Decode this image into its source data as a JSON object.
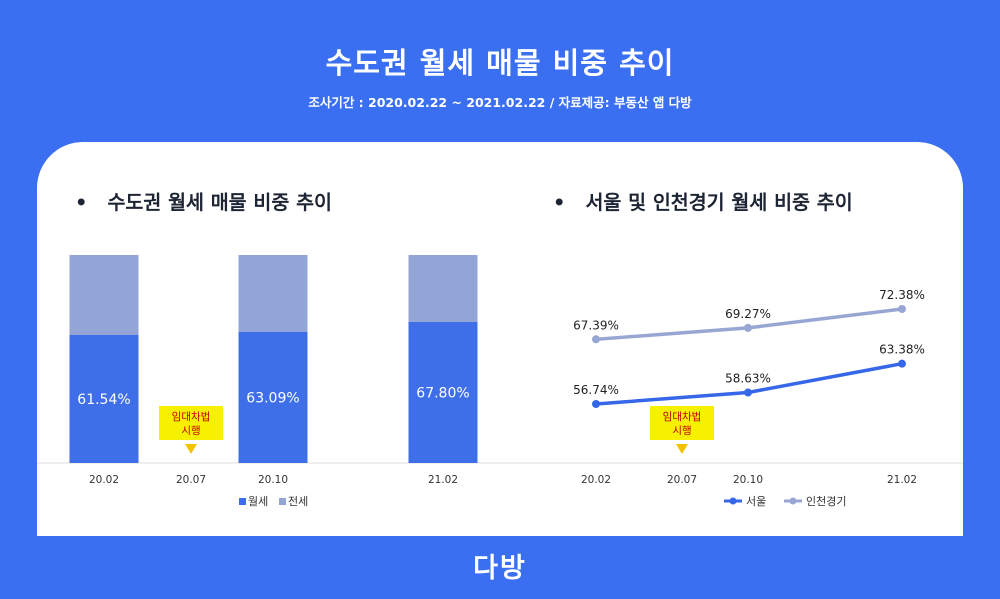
{
  "header": {
    "title": "수도권 월세 매물 비중 추이",
    "subtitle": "조사기간 : 2020.02.22 ~ 2021.02.22 / 자료제공: 부동산 앱 다방"
  },
  "logo_text": "다방",
  "colors": {
    "background": "#3a6ff2",
    "monthly": "#3f6fe8",
    "jeonse": "#93a5d6",
    "seoul": "#3567e8",
    "incheon_gyeonggi": "#98a6d3",
    "note_bg": "#f6f100",
    "note_text": "#c00000"
  },
  "chart_data": [
    {
      "type": "bar",
      "title": "수도권 월세 매물 비중 추이",
      "bullet": "•",
      "categories": [
        "20.02",
        "20.07",
        "20.10",
        "21.02"
      ],
      "stacked": true,
      "ylim": [
        0,
        100
      ],
      "series": [
        {
          "name": "월세",
          "values": [
            61.54,
            null,
            63.09,
            67.8
          ],
          "labels": [
            "61.54%",
            "",
            "63.09%",
            "67.80%"
          ]
        },
        {
          "name": "전세",
          "values": [
            38.46,
            null,
            36.91,
            32.2
          ]
        }
      ],
      "legend_position": "bottom",
      "annotation": {
        "category": "20.07",
        "text_lines": [
          "임대차법",
          "시행"
        ]
      }
    },
    {
      "type": "line",
      "title": "서울 및 인천경기 월세 비중 추이",
      "bullet": "•",
      "x": [
        "20.02",
        "20.07",
        "20.10",
        "21.02"
      ],
      "series": [
        {
          "name": "서울",
          "values": [
            56.74,
            null,
            58.63,
            63.38
          ],
          "labels": [
            "56.74%",
            "",
            "58.63%",
            "63.38%"
          ]
        },
        {
          "name": "인천경기",
          "values": [
            67.39,
            null,
            69.27,
            72.38
          ],
          "labels": [
            "67.39%",
            "",
            "69.27%",
            "72.38%"
          ]
        }
      ],
      "legend_position": "bottom",
      "annotation": {
        "category": "20.07",
        "text_lines": [
          "임대차법",
          "시행"
        ]
      }
    }
  ]
}
